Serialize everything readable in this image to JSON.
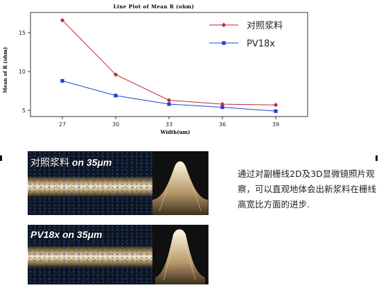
{
  "chart_data": {
    "type": "line",
    "title": "Line Plot of Mean R (ohm)",
    "xlabel": "Width(um)",
    "ylabel": "Mean of R (ohm)",
    "x": [
      27,
      30,
      33,
      36,
      39
    ],
    "x_ticks": [
      27,
      30,
      33,
      36,
      39
    ],
    "y_ticks": [
      5,
      10,
      15
    ],
    "ylim": [
      4.2,
      17.6
    ],
    "legend": "top-right",
    "grid": false,
    "series": [
      {
        "name": "对照浆料",
        "values": [
          16.6,
          9.6,
          6.3,
          5.8,
          5.7
        ],
        "color": "#c0282d",
        "marker": "diamond"
      },
      {
        "name": "PV18x",
        "values": [
          8.8,
          6.9,
          5.8,
          5.4,
          4.9
        ],
        "color": "#1f3fd6",
        "marker": "square"
      }
    ]
  },
  "micrographs": [
    {
      "label_main": "对照浆料",
      "label_sub": "on 35μm"
    },
    {
      "label_main": "PV18x",
      "label_sub": "on 35μm"
    }
  ],
  "description": "通过对副栅线2D及3D显微镜照片观察，可以直观地体会出新浆料在栅线高宽比方面的进步."
}
